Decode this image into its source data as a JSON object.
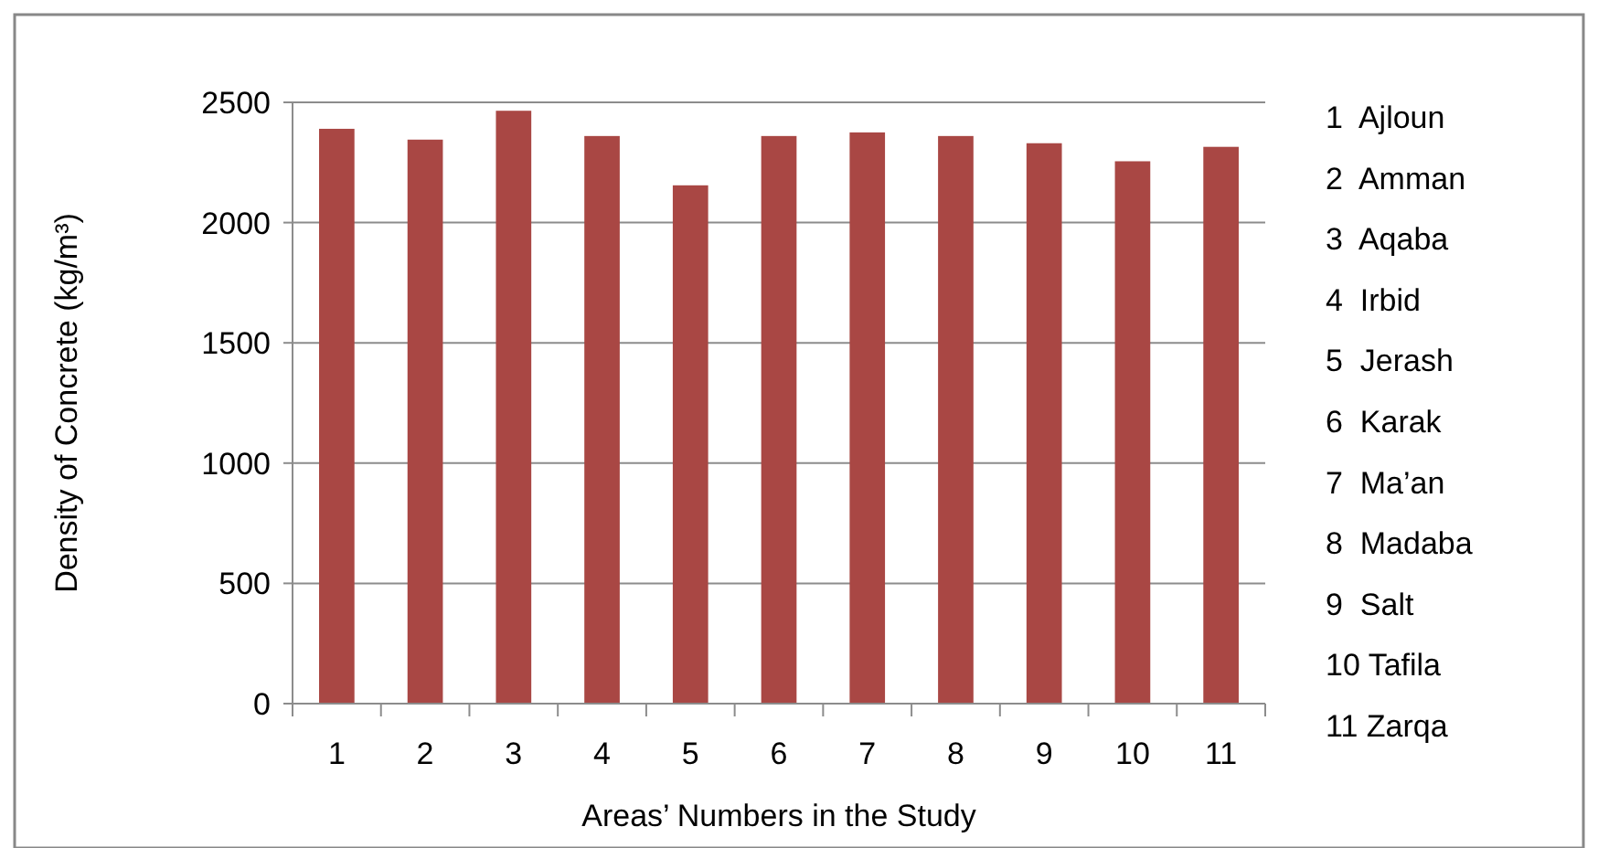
{
  "chart_data": {
    "type": "bar",
    "xlabel": "Areas’ Numbers in the Study",
    "ylabel": "Density of Concrete (kg/m³)",
    "categories": [
      "1",
      "2",
      "3",
      "4",
      "5",
      "6",
      "7",
      "8",
      "9",
      "10",
      "11"
    ],
    "values": [
      2390,
      2345,
      2465,
      2360,
      2155,
      2360,
      2375,
      2360,
      2330,
      2255,
      2315
    ],
    "color": "#a94744",
    "ylim": [
      0,
      2500
    ],
    "yticks": [
      0,
      500,
      1000,
      1500,
      2000,
      2500
    ],
    "grid": "y",
    "annotations": [
      "1  Ajloun",
      "2  Amman",
      "3  Aqaba",
      "4  Irbid",
      "5  Jerash",
      "6  Karak",
      "7  Ma’an",
      "8  Madaba",
      "9  Salt",
      "10 Tafila",
      "11 Zarqa"
    ]
  }
}
